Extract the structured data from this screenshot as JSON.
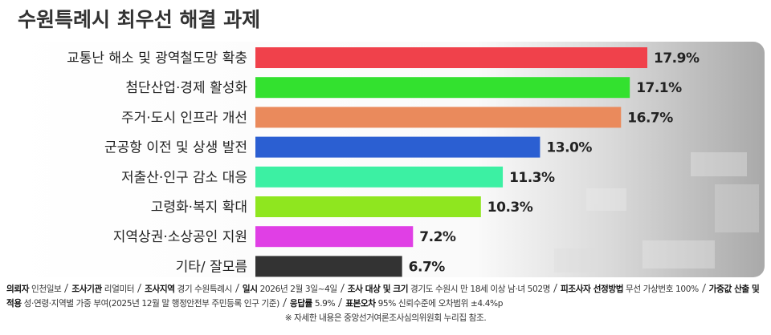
{
  "chart_data": {
    "type": "bar",
    "orientation": "horizontal",
    "title": "수원특례시 최우선 해결 과제",
    "categories": [
      "교통난 해소 및 광역철도망 확충",
      "첨단산업·경제 활성화",
      "주거·도시 인프라 개선",
      "군공항 이전 및 상생 발전",
      "저출산·인구 감소 대응",
      "고령화·복지 확대",
      "지역상권·소상공인 지원",
      "기타/ 잘모름"
    ],
    "series": [
      {
        "values": [
          17.9,
          17.1,
          16.7,
          13.0,
          11.3,
          10.3,
          7.2,
          6.7
        ],
        "value_labels": [
          "17.9%",
          "17.1%",
          "16.7%",
          "13.0%",
          "11.3%",
          "10.3%",
          "7.2%",
          "6.7%"
        ],
        "colors": [
          "#f0414b",
          "#33e12f",
          "#ea8a5c",
          "#2b5fd2",
          "#3cf0a3",
          "#8fe61f",
          "#e03fe5",
          "#333333"
        ]
      }
    ]
  },
  "notes": {
    "items": [
      {
        "label": "의뢰자",
        "text": "인천일보"
      },
      {
        "label": "조사기관",
        "text": "리얼미터"
      },
      {
        "label": "조사지역",
        "text": "경기 수원특례시"
      },
      {
        "label": "일시",
        "text": "2026년 2월 3일~4일"
      },
      {
        "label": "조사 대상 및 크기",
        "text": "경기도 수원시 만 18세 이상 남·녀 502명"
      },
      {
        "label": "피조사자 선정방법",
        "text": "무선 가상번호 100%"
      },
      {
        "label": "가중값 산출 및 적용",
        "text": "성·연령·지역별 가중 부여(2025년 12월 말 행정안전부 주민등록 인구 기준)"
      },
      {
        "label": "응답률",
        "text": "5.9%"
      },
      {
        "label": "표본오차",
        "text": "95% 신뢰수준에 오차범위 ±4.4%p"
      }
    ],
    "remark": "※ 자세한 내용은 중앙선거여론조사심의위원회 누리집 참조."
  }
}
